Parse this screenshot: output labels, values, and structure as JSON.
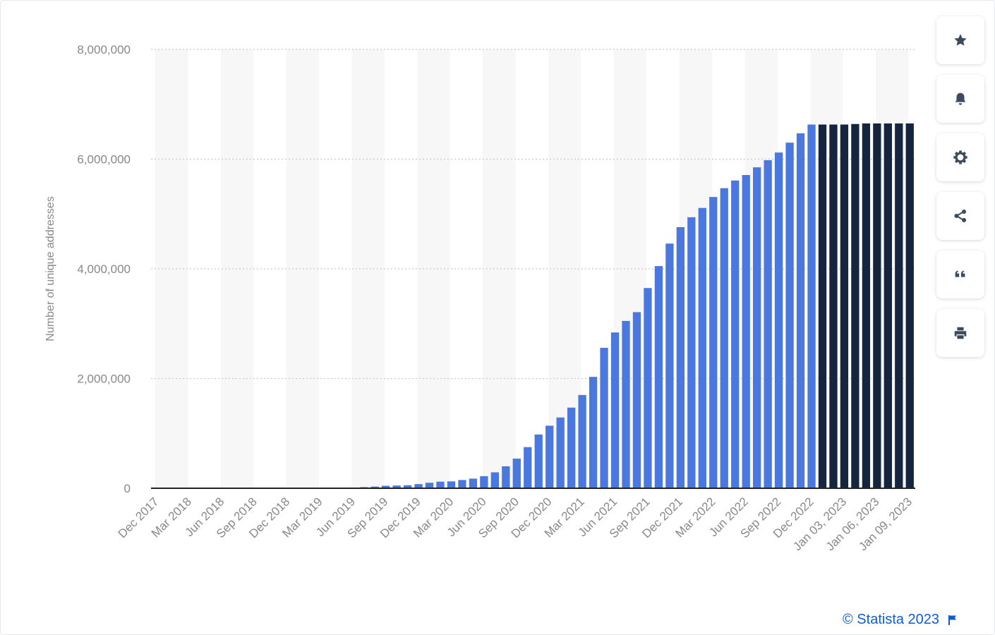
{
  "toolbar": [
    {
      "name": "favorite",
      "icon": "star-icon"
    },
    {
      "name": "notification",
      "icon": "bell-icon"
    },
    {
      "name": "settings",
      "icon": "gear-icon"
    },
    {
      "name": "share",
      "icon": "share-icon"
    },
    {
      "name": "cite",
      "icon": "quote-icon"
    },
    {
      "name": "print",
      "icon": "printer-icon"
    }
  ],
  "credit": {
    "text": "© Statista 2023",
    "icon": "flag-icon"
  },
  "colors": {
    "bar": "#4a78de",
    "bar_recent": "#15253d",
    "axis_text": "#888888",
    "credit": "#0f5dd4"
  },
  "chart_data": {
    "type": "bar",
    "ylabel": "Number of unique addresses",
    "xlabel": "",
    "ylim": [
      0,
      8000000
    ],
    "yticks": [
      "0",
      "2,000,000",
      "4,000,000",
      "6,000,000",
      "8,000,000"
    ],
    "grid": "horizontal dotted",
    "x_tick_labels": [
      "Dec 2017",
      "Mar 2018",
      "Jun 2018",
      "Sep 2018",
      "Dec 2018",
      "Mar 2019",
      "Jun 2019",
      "Sep 2019",
      "Dec 2019",
      "Mar 2020",
      "Jun 2020",
      "Sep 2020",
      "Dec 2020",
      "Mar 2021",
      "Jun 2021",
      "Sep 2021",
      "Dec 2021",
      "Mar 2022",
      "Jun 2022",
      "Sep 2022",
      "Dec 2022",
      "Jan 03, 2023",
      "Jan 06, 2023",
      "Jan 09, 2023"
    ],
    "categories": [
      "Dec 2017",
      "Jan 2018",
      "Feb 2018",
      "Mar 2018",
      "Apr 2018",
      "May 2018",
      "Jun 2018",
      "Jul 2018",
      "Aug 2018",
      "Sep 2018",
      "Oct 2018",
      "Nov 2018",
      "Dec 2018",
      "Jan 2019",
      "Feb 2019",
      "Mar 2019",
      "Apr 2019",
      "May 2019",
      "Jun 2019",
      "Jul 2019",
      "Aug 2019",
      "Sep 2019",
      "Oct 2019",
      "Nov 2019",
      "Dec 2019",
      "Jan 2020",
      "Feb 2020",
      "Mar 2020",
      "Apr 2020",
      "May 2020",
      "Jun 2020",
      "Jul 2020",
      "Aug 2020",
      "Sep 2020",
      "Oct 2020",
      "Nov 2020",
      "Dec 2020",
      "Jan 2021",
      "Feb 2021",
      "Mar 2021",
      "Apr 2021",
      "May 2021",
      "Jun 2021",
      "Jul 2021",
      "Aug 2021",
      "Sep 2021",
      "Oct 2021",
      "Nov 2021",
      "Dec 2021",
      "Jan 2022",
      "Feb 2022",
      "Mar 2022",
      "Apr 2022",
      "May 2022",
      "Jun 2022",
      "Jul 2022",
      "Aug 2022",
      "Sep 2022",
      "Oct 2022",
      "Nov 2022",
      "Dec 2022",
      "Jan 01, 2023",
      "Jan 02, 2023",
      "Jan 03, 2023",
      "Jan 04, 2023",
      "Jan 05, 2023",
      "Jan 06, 2023",
      "Jan 07, 2023",
      "Jan 08, 2023",
      "Jan 09, 2023"
    ],
    "values": [
      0,
      0,
      0,
      0,
      0,
      0,
      0,
      0,
      0,
      0,
      0,
      0,
      0,
      0,
      0,
      0,
      0,
      0,
      0,
      20000,
      30000,
      45000,
      50000,
      55000,
      75000,
      100000,
      120000,
      125000,
      150000,
      175000,
      220000,
      290000,
      400000,
      540000,
      750000,
      980000,
      1140000,
      1290000,
      1470000,
      1700000,
      2030000,
      2560000,
      2840000,
      3050000,
      3210000,
      3650000,
      4050000,
      4460000,
      4760000,
      4940000,
      5110000,
      5310000,
      5470000,
      5610000,
      5710000,
      5850000,
      5980000,
      6120000,
      6300000,
      6470000,
      6630000,
      6630000,
      6630000,
      6630000,
      6640000,
      6650000,
      6650000,
      6650000,
      6650000,
      6650000
    ],
    "highlight_from": "Jan 01, 2023"
  }
}
